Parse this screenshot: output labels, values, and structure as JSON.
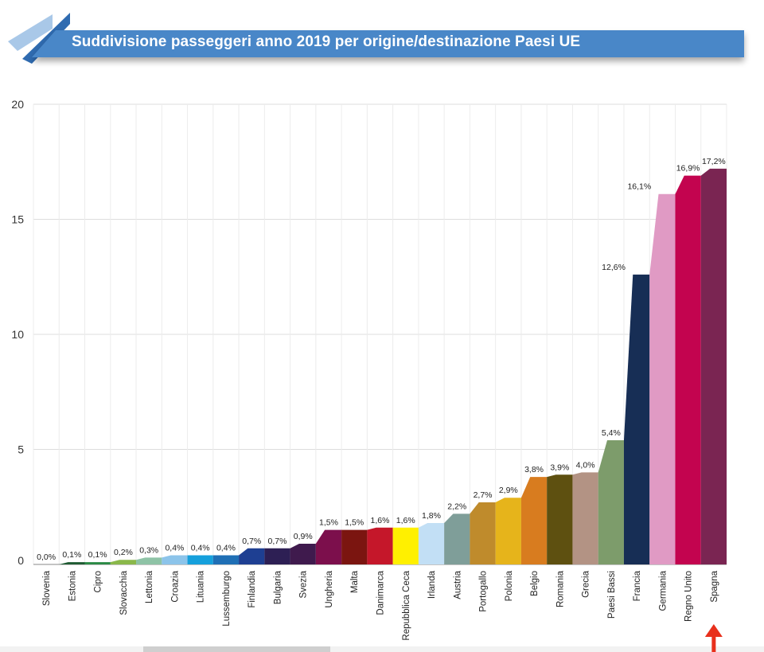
{
  "title": "Suddivisione passeggeri anno 2019 per origine/destinazione Paesi UE",
  "colors": {
    "banner": "#4a87c8",
    "banner_dark": "#2f6bb0",
    "stripe": "#a9c8e8",
    "arrow": "#e8301c",
    "grid": "#dddddd"
  },
  "chart_data": {
    "type": "area",
    "title": "Suddivisione passeggeri anno 2019 per origine/destinazione Paesi UE",
    "xlabel": "",
    "ylabel": "",
    "ylim": [
      0,
      20
    ],
    "yticks": [
      0,
      5,
      10,
      15,
      20
    ],
    "grid": true,
    "categories": [
      "Slovenia",
      "Estonia",
      "Cipro",
      "Slovacchia",
      "Lettonia",
      "Croazia",
      "Lituania",
      "Lussemburgo",
      "Finlandia",
      "Bulgaria",
      "Svezia",
      "Ungheria",
      "Malta",
      "Danimarca",
      "Repubblica Ceca",
      "Irlanda",
      "Austria",
      "Portogallo",
      "Polonia",
      "Belgio",
      "Romania",
      "Grecia",
      "Paesi Bassi",
      "Francia",
      "Germania",
      "Regno Unito",
      "Spagna"
    ],
    "values": [
      0.0,
      0.1,
      0.1,
      0.2,
      0.3,
      0.4,
      0.4,
      0.4,
      0.7,
      0.7,
      0.9,
      1.5,
      1.5,
      1.6,
      1.6,
      1.8,
      2.2,
      2.7,
      2.9,
      3.8,
      3.9,
      4.0,
      5.4,
      12.6,
      16.1,
      16.9,
      17.2
    ],
    "labels": [
      "0,0%",
      "0,1%",
      "0,1%",
      "0,2%",
      "0,3%",
      "0,4%",
      "0,4%",
      "0,4%",
      "0,7%",
      "0,7%",
      "0,9%",
      "1,5%",
      "1,5%",
      "1,6%",
      "1,6%",
      "1,8%",
      "2,2%",
      "2,7%",
      "2,9%",
      "3,8%",
      "3,9%",
      "4,0%",
      "5,4%",
      "12,6%",
      "16,1%",
      "16,9%",
      "17,2%"
    ],
    "colors": [
      "#6b8e3a",
      "#1e5b32",
      "#2a8a44",
      "#8ab84a",
      "#8ec3a6",
      "#8cc4ea",
      "#15a0dc",
      "#1f6fb5",
      "#1e3f92",
      "#2d1f54",
      "#3f1a4d",
      "#7c0f4c",
      "#7b1510",
      "#c5172a",
      "#fff000",
      "#c2dff5",
      "#7f9e99",
      "#bf8b2c",
      "#e6b41b",
      "#d87c1f",
      "#5e5010",
      "#b39384",
      "#7d9c6b",
      "#172e55",
      "#e09ac4",
      "#c3044f",
      "#7a2552"
    ],
    "highlight": "Spagna"
  }
}
